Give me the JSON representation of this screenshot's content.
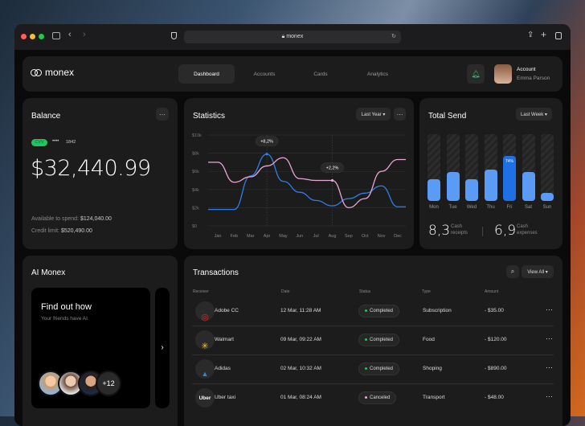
{
  "browser": {
    "url": "monex"
  },
  "nav": {
    "brand": "monex",
    "tabs": [
      "Dashboard",
      "Accounts",
      "Cards",
      "Analytics"
    ],
    "account_label": "Account",
    "account_name": "Emma Parson"
  },
  "balance": {
    "title": "Balance",
    "card_badge": "CVV",
    "card_mask": "••••",
    "card_last4": "1842",
    "amount": "$32,440.99",
    "available_label": "Available to spend:",
    "available_value": "$124,040.00",
    "credit_label": "Credit limit:",
    "credit_value": "$520,490.00"
  },
  "statistics": {
    "title": "Statistics",
    "period": "Last Year ▾",
    "tooltips": [
      "+8,2%",
      "+2,2%"
    ]
  },
  "chart_data": {
    "type": "line",
    "title": "Statistics",
    "x": [
      "Jan",
      "Feb",
      "Mar",
      "Apr",
      "May",
      "Jun",
      "Jul",
      "Aug",
      "Sep",
      "Oct",
      "Nov",
      "Dec"
    ],
    "y_ticks": [
      "$0",
      "$2k",
      "$4k",
      "$6k",
      "$8k",
      "$10k"
    ],
    "ylim": [
      0,
      10000
    ],
    "grid": true,
    "series": [
      {
        "name": "blue",
        "color": "#2f7fe8",
        "values": [
          1800,
          1800,
          5500,
          7900,
          4900,
          3700,
          2800,
          2200,
          3000,
          3600,
          4400,
          2100
        ]
      },
      {
        "name": "pink",
        "color": "#e9a6d6",
        "values": [
          7000,
          4800,
          5400,
          6600,
          7500,
          5200,
          5000,
          5000,
          2000,
          3000,
          6000,
          7300
        ]
      }
    ],
    "annotations": [
      {
        "x": "Apr",
        "label": "+8,2%",
        "series": "blue"
      },
      {
        "x": "Aug",
        "label": "+2,2%",
        "series": "pink"
      }
    ]
  },
  "total_send": {
    "title": "Total Send",
    "period": "Last Week ▾",
    "days": [
      "Mon",
      "Tue",
      "Wed",
      "Thu",
      "Fri",
      "Sat",
      "Sun"
    ],
    "fill": [
      0.33,
      0.43,
      0.32,
      0.47,
      0.68,
      0.43,
      0.12
    ],
    "highlight_label": "74%",
    "receipts_value": "8,3",
    "receipts_label1": "Cash",
    "receipts_label2": "receipts",
    "expenses_value": "6,9",
    "expenses_label1": "Cash",
    "expenses_label2": "expenses"
  },
  "ai": {
    "title": "AI Monex",
    "headline": "Find out how",
    "sub": "Your friends have AI",
    "more": "+12"
  },
  "transactions": {
    "title": "Transactions",
    "view_all": "View All ▾",
    "columns": [
      "Receiver",
      "Date",
      "Status",
      "Type",
      "Amount"
    ],
    "rows": [
      {
        "receiver": "Adobe CC",
        "date": "12 Mar, 11:28 AM",
        "status": "Completed",
        "type": "Subscription",
        "amount": "- $35.00"
      },
      {
        "receiver": "Walmart",
        "date": "09 Mar, 09:22 AM",
        "status": "Completed",
        "type": "Food",
        "amount": "- $120.00"
      },
      {
        "receiver": "Adidas",
        "date": "02 Mar, 10:32 AM",
        "status": "Completed",
        "type": "Shoping",
        "amount": "- $890.00"
      },
      {
        "receiver": "Uber taxi",
        "date": "01 Mar, 08:24 AM",
        "status": "Canceled",
        "type": "Transport",
        "amount": "- $48.00"
      }
    ],
    "uber_logo": "Uber"
  },
  "colors": {
    "accent": "#2f7fe8",
    "pink": "#e9a6d6",
    "green": "#22c55e"
  }
}
